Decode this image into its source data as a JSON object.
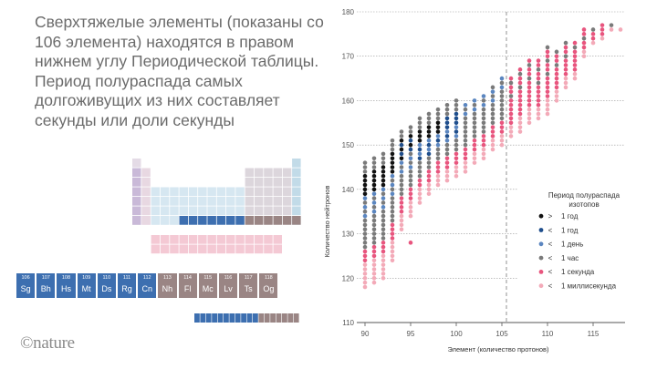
{
  "headline": "Сверхтяжелые элементы (показаны со 106 элемента) находятся в правом нижнем углу Периодической таблицы. Период полураспада самых долгоживущих из них составляет секунды или доли секунды",
  "logo": "©nature",
  "elements": [
    {
      "number": "106",
      "symbol": "Sg",
      "color": "#3d6fb0"
    },
    {
      "number": "107",
      "symbol": "Bh",
      "color": "#3d6fb0"
    },
    {
      "number": "108",
      "symbol": "Hs",
      "color": "#3d6fb0"
    },
    {
      "number": "109",
      "symbol": "Mt",
      "color": "#3d6fb0"
    },
    {
      "number": "110",
      "symbol": "Ds",
      "color": "#3d6fb0"
    },
    {
      "number": "111",
      "symbol": "Rg",
      "color": "#3d6fb0"
    },
    {
      "number": "112",
      "symbol": "Cn",
      "color": "#3d6fb0"
    },
    {
      "number": "113",
      "symbol": "Nh",
      "color": "#9a8584"
    },
    {
      "number": "114",
      "symbol": "Fl",
      "color": "#9a8584"
    },
    {
      "number": "115",
      "symbol": "Mc",
      "color": "#9a8584"
    },
    {
      "number": "116",
      "symbol": "Lv",
      "color": "#9a8584"
    },
    {
      "number": "117",
      "symbol": "Ts",
      "color": "#9a8584"
    },
    {
      "number": "118",
      "symbol": "Og",
      "color": "#9a8584"
    }
  ],
  "chart_data": {
    "type": "scatter",
    "xlabel": "Элемент (количество протонов)",
    "ylabel": "Количество нейтронов",
    "xlim": [
      89.5,
      118.5
    ],
    "ylim": [
      110,
      180
    ],
    "xticks": [
      90,
      95,
      100,
      105,
      110,
      115
    ],
    "yticks": [
      110,
      120,
      130,
      140,
      150,
      160,
      170,
      180
    ],
    "reference_line_x": 105.5,
    "legend": {
      "title": "Период полураспада изотопов",
      "position": "right",
      "entries": [
        {
          "symbol": ">",
          "label": "1 год",
          "color": "#111111"
        },
        {
          "symbol": "<",
          "label": "1 год",
          "color": "#1f4e8c"
        },
        {
          "symbol": "<",
          "label": "1 день",
          "color": "#5b86c0"
        },
        {
          "symbol": "<",
          "label": "1 час",
          "color": "#7a7a7a"
        },
        {
          "symbol": "<",
          "label": "1 секунда",
          "color": "#e8557e"
        },
        {
          "symbol": "<",
          "label": "1 миллисекунда",
          "color": "#f3aab8"
        }
      ]
    },
    "series": [
      {
        "z": 90,
        "n_min": 118,
        "n_max": 146
      },
      {
        "z": 91,
        "n_min": 119,
        "n_max": 147
      },
      {
        "z": 92,
        "n_min": 120,
        "n_max": 148
      },
      {
        "z": 93,
        "n_min": 124,
        "n_max": 151
      },
      {
        "z": 94,
        "n_min": 131,
        "n_max": 153
      },
      {
        "z": 95,
        "n_min": 134,
        "n_max": 154
      },
      {
        "z": 96,
        "n_min": 137,
        "n_max": 156
      },
      {
        "z": 97,
        "n_min": 139,
        "n_max": 157
      },
      {
        "z": 98,
        "n_min": 141,
        "n_max": 158
      },
      {
        "z": 99,
        "n_min": 142,
        "n_max": 159
      },
      {
        "z": 100,
        "n_min": 143,
        "n_max": 160
      },
      {
        "z": 101,
        "n_min": 144,
        "n_max": 159
      },
      {
        "z": 102,
        "n_min": 146,
        "n_max": 160
      },
      {
        "z": 103,
        "n_min": 147,
        "n_max": 161
      },
      {
        "z": 104,
        "n_min": 149,
        "n_max": 163
      },
      {
        "z": 105,
        "n_min": 150,
        "n_max": 165
      },
      {
        "z": 106,
        "n_min": 152,
        "n_max": 165
      },
      {
        "z": 107,
        "n_min": 153,
        "n_max": 167
      },
      {
        "z": 108,
        "n_min": 155,
        "n_max": 169
      },
      {
        "z": 109,
        "n_min": 156,
        "n_max": 169
      },
      {
        "z": 110,
        "n_min": 157,
        "n_max": 172
      },
      {
        "z": 111,
        "n_min": 160,
        "n_max": 171
      },
      {
        "z": 112,
        "n_min": 163,
        "n_max": 173
      },
      {
        "z": 113,
        "n_min": 165,
        "n_max": 173
      },
      {
        "z": 114,
        "n_min": 170,
        "n_max": 176
      },
      {
        "z": 115,
        "n_min": 173,
        "n_max": 176
      },
      {
        "z": 116,
        "n_min": 174,
        "n_max": 177
      },
      {
        "z": 117,
        "n_min": 176,
        "n_max": 177
      },
      {
        "z": 118,
        "n_min": 176,
        "n_max": 176
      }
    ],
    "special_points": [
      {
        "z": 95,
        "n": 128,
        "category": 4
      }
    ]
  }
}
